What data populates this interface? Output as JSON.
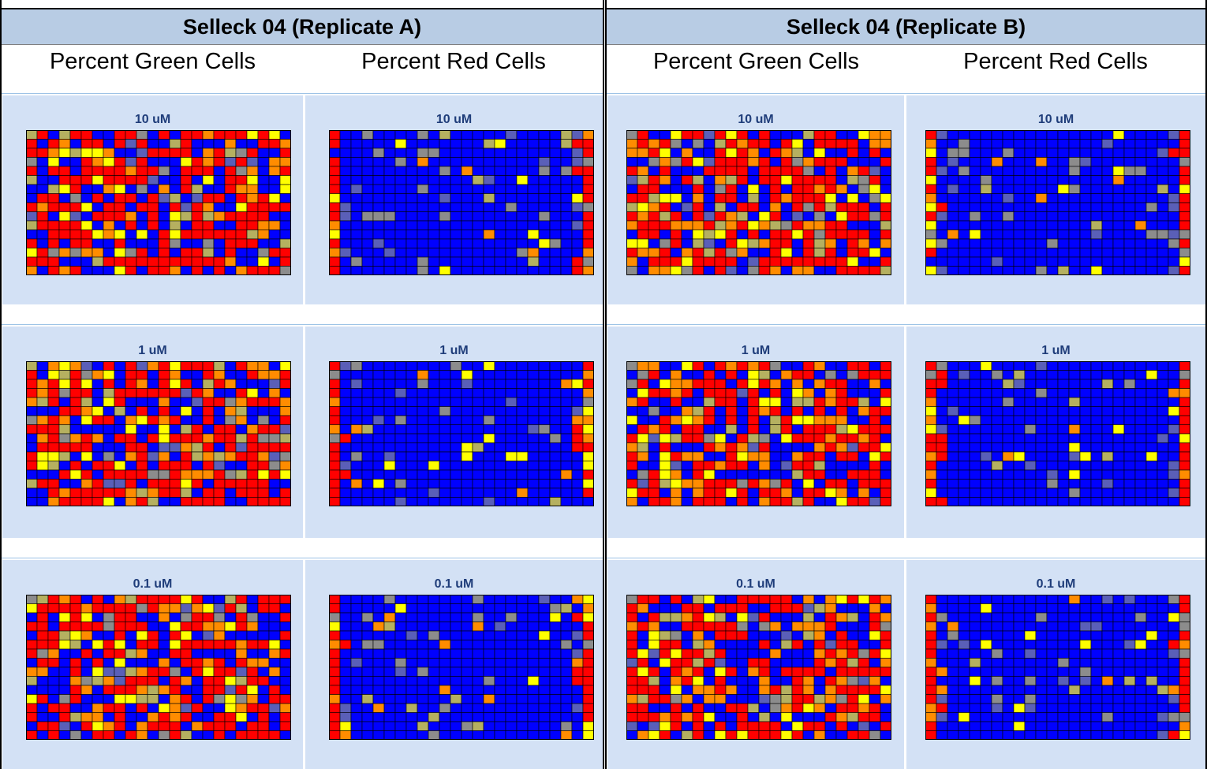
{
  "replicates": [
    {
      "title": "Selleck 04 (Replicate A)",
      "col_green": "Percent Green Cells",
      "col_red": "Percent Red Cells",
      "panels": [
        "10 uM",
        "1 uM",
        "0.1 uM"
      ]
    },
    {
      "title": "Selleck 04 (Replicate B)",
      "col_green": "Percent Green Cells",
      "col_red": "Percent Red Cells",
      "panels": [
        "10 uM",
        "1 uM",
        "0.1 uM"
      ]
    }
  ],
  "colors": {
    "blue": "#0000ff",
    "slate": "#5a5fb8",
    "grey": "#8c8c8c",
    "olive": "#b5b060",
    "yellow": "#ffff00",
    "orange": "#ff8c00",
    "red": "#ff0000",
    "panel_bg": "#d3e1f5",
    "title_bg": "#b8cce4",
    "label": "#1f3d7a"
  },
  "chart_data": {
    "type": "heatmap",
    "plate_format": {
      "rows": 16,
      "columns": 24
    },
    "color_scale": [
      "blue",
      "slate",
      "grey",
      "olive",
      "yellow",
      "orange",
      "red"
    ],
    "plates": [
      {
        "replicate": "Selleck 04 (Replicate A)",
        "measure": "Percent Green Cells",
        "concentration": "10 uM"
      },
      {
        "replicate": "Selleck 04 (Replicate A)",
        "measure": "Percent Red Cells",
        "concentration": "10 uM"
      },
      {
        "replicate": "Selleck 04 (Replicate A)",
        "measure": "Percent Green Cells",
        "concentration": "1 uM"
      },
      {
        "replicate": "Selleck 04 (Replicate A)",
        "measure": "Percent Red Cells",
        "concentration": "1 uM"
      },
      {
        "replicate": "Selleck 04 (Replicate A)",
        "measure": "Percent Green Cells",
        "concentration": "0.1 uM"
      },
      {
        "replicate": "Selleck 04 (Replicate A)",
        "measure": "Percent Red Cells",
        "concentration": "0.1 uM"
      },
      {
        "replicate": "Selleck 04 (Replicate B)",
        "measure": "Percent Green Cells",
        "concentration": "10 uM"
      },
      {
        "replicate": "Selleck 04 (Replicate B)",
        "measure": "Percent Red Cells",
        "concentration": "10 uM"
      },
      {
        "replicate": "Selleck 04 (Replicate B)",
        "measure": "Percent Green Cells",
        "concentration": "1 uM"
      },
      {
        "replicate": "Selleck 04 (Replicate B)",
        "measure": "Percent Red Cells",
        "concentration": "1 uM"
      },
      {
        "replicate": "Selleck 04 (Replicate B)",
        "measure": "Percent Green Cells",
        "concentration": "0.1 uM"
      },
      {
        "replicate": "Selleck 04 (Replicate B)",
        "measure": "Percent Red Cells",
        "concentration": "0.1 uM"
      }
    ]
  }
}
